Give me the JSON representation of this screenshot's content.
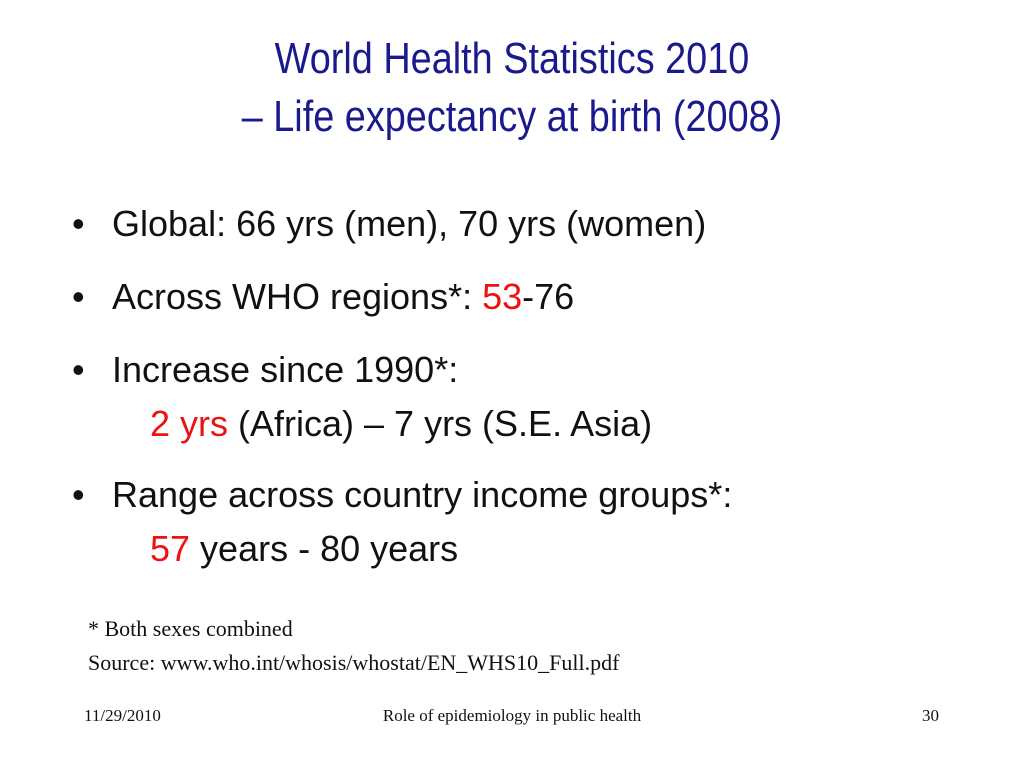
{
  "title": {
    "line1": "World Health Statistics 2010",
    "line2": "– Life expectancy at birth (2008)"
  },
  "bullets": [
    {
      "marker": "•",
      "parts": [
        {
          "text": "Global: 66 yrs (men), 70 yrs (women)",
          "highlight": false
        }
      ]
    },
    {
      "marker": "•",
      "parts": [
        {
          "text": "Across WHO regions*: ",
          "highlight": false
        },
        {
          "text": "53",
          "highlight": true
        },
        {
          "text": "-76",
          "highlight": false
        }
      ]
    },
    {
      "marker": "•",
      "parts": [
        {
          "text": "Increase since 1990*:",
          "highlight": false
        }
      ],
      "sub": [
        {
          "text": "2 yrs",
          "highlight": true
        },
        {
          "text": " (Africa) – 7 yrs (S.E. Asia)",
          "highlight": false
        }
      ]
    },
    {
      "marker": "•",
      "parts": [
        {
          "text": "Range across country income groups*:",
          "highlight": false
        }
      ],
      "sub": [
        {
          "text": "57",
          "highlight": true
        },
        {
          "text": " years - 80 years",
          "highlight": false
        }
      ]
    }
  ],
  "footnote": {
    "note": "* Both sexes combined",
    "source": "Source:  www.who.int/whosis/whostat/EN_WHS10_Full.pdf"
  },
  "footer": {
    "date": "11/29/2010",
    "center": "Role of epidemiology in public health",
    "page_number": "30"
  },
  "colors": {
    "title": "#1a1a8c",
    "highlight": "#ee1111",
    "text": "#111111"
  }
}
